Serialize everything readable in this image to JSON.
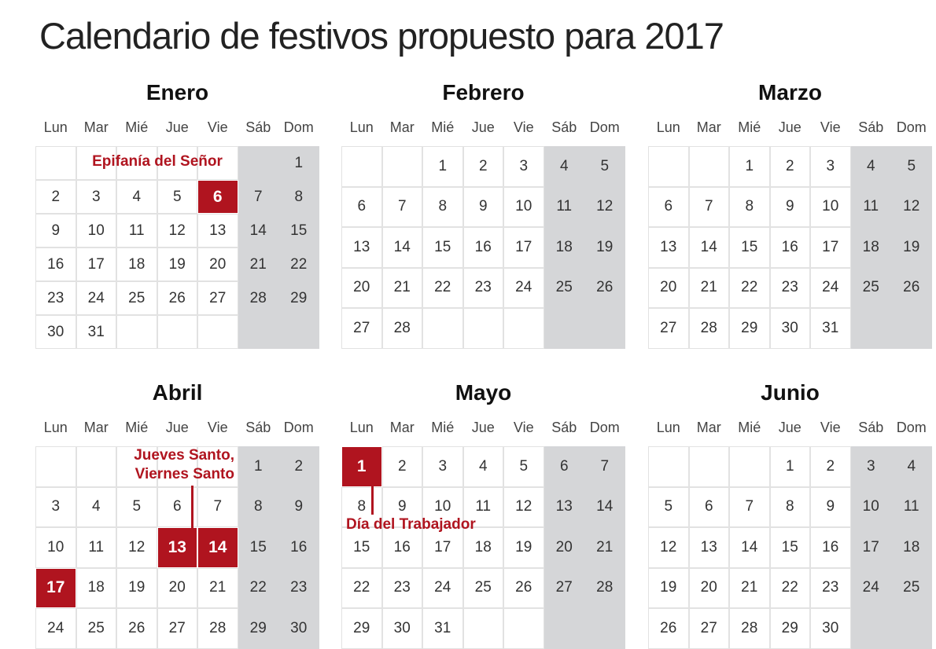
{
  "title": "Calendario de festivos propuesto para 2017",
  "weekdays": [
    "Lun",
    "Mar",
    "Mié",
    "Jue",
    "Vie",
    "Sáb",
    "Dom"
  ],
  "colors": {
    "holiday": "#b0141f",
    "weekend": "#d5d6d8"
  },
  "months": [
    {
      "name": "Enero",
      "weeks": [
        [
          null,
          null,
          null,
          null,
          null,
          null,
          1
        ],
        [
          2,
          3,
          4,
          5,
          6,
          7,
          8
        ],
        [
          9,
          10,
          11,
          12,
          13,
          14,
          15
        ],
        [
          16,
          17,
          18,
          19,
          20,
          21,
          22
        ],
        [
          23,
          24,
          25,
          26,
          27,
          28,
          29
        ],
        [
          30,
          31,
          null,
          null,
          null,
          null,
          null
        ]
      ],
      "holidays": [
        6
      ],
      "annotation": "Epifanía del Señor"
    },
    {
      "name": "Febrero",
      "weeks": [
        [
          null,
          null,
          1,
          2,
          3,
          4,
          5
        ],
        [
          6,
          7,
          8,
          9,
          10,
          11,
          12
        ],
        [
          13,
          14,
          15,
          16,
          17,
          18,
          19
        ],
        [
          20,
          21,
          22,
          23,
          24,
          25,
          26
        ],
        [
          27,
          28,
          null,
          null,
          null,
          null,
          null
        ]
      ],
      "holidays": []
    },
    {
      "name": "Marzo",
      "weeks": [
        [
          null,
          null,
          1,
          2,
          3,
          4,
          5
        ],
        [
          6,
          7,
          8,
          9,
          10,
          11,
          12
        ],
        [
          13,
          14,
          15,
          16,
          17,
          18,
          19
        ],
        [
          20,
          21,
          22,
          23,
          24,
          25,
          26
        ],
        [
          27,
          28,
          29,
          30,
          31,
          null,
          null
        ]
      ],
      "holidays": []
    },
    {
      "name": "Abril",
      "weeks": [
        [
          null,
          null,
          null,
          null,
          null,
          1,
          2
        ],
        [
          3,
          4,
          5,
          6,
          7,
          8,
          9
        ],
        [
          10,
          11,
          12,
          13,
          14,
          15,
          16
        ],
        [
          17,
          18,
          19,
          20,
          21,
          22,
          23
        ],
        [
          24,
          25,
          26,
          27,
          28,
          29,
          30
        ]
      ],
      "holidays": [
        13,
        14,
        17
      ],
      "annotation": "Jueves Santo,\nViernes Santo"
    },
    {
      "name": "Mayo",
      "weeks": [
        [
          1,
          2,
          3,
          4,
          5,
          6,
          7
        ],
        [
          8,
          9,
          10,
          11,
          12,
          13,
          14
        ],
        [
          15,
          16,
          17,
          18,
          19,
          20,
          21
        ],
        [
          22,
          23,
          24,
          25,
          26,
          27,
          28
        ],
        [
          29,
          30,
          31,
          null,
          null,
          null,
          null
        ]
      ],
      "holidays": [
        1
      ],
      "annotation": "Día del Trabajador"
    },
    {
      "name": "Junio",
      "weeks": [
        [
          null,
          null,
          null,
          1,
          2,
          3,
          4
        ],
        [
          5,
          6,
          7,
          8,
          9,
          10,
          11
        ],
        [
          12,
          13,
          14,
          15,
          16,
          17,
          18
        ],
        [
          19,
          20,
          21,
          22,
          23,
          24,
          25
        ],
        [
          26,
          27,
          28,
          29,
          30,
          null,
          null
        ]
      ],
      "holidays": []
    }
  ]
}
